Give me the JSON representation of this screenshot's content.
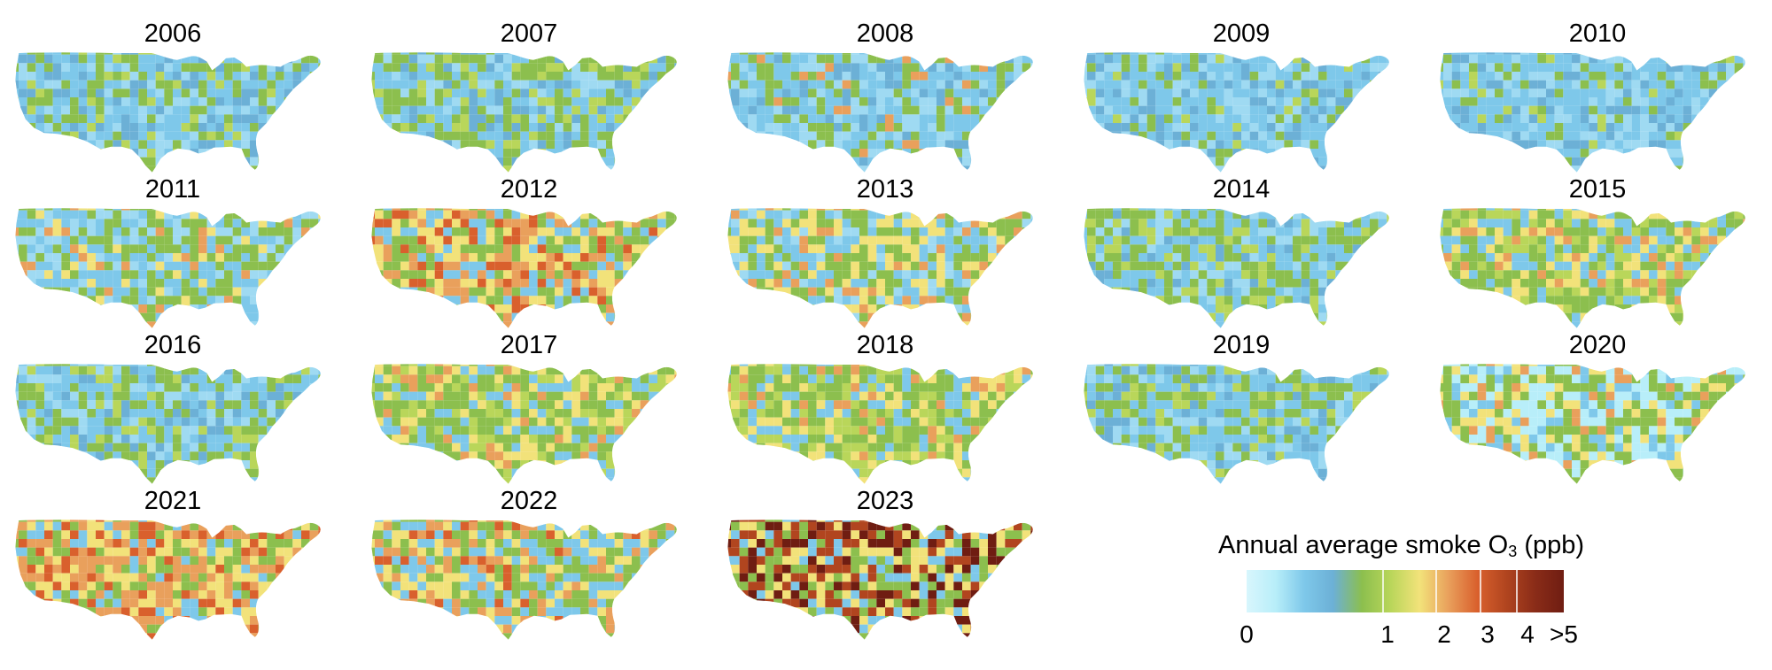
{
  "maps": {
    "panels": [
      {
        "year": "2006",
        "palette": [
          "#7ec8ea",
          "#9fdaf2",
          "#6cb0d6",
          "#8cbf4e",
          "#b9d65a"
        ],
        "weights": [
          0.34,
          0.16,
          0.18,
          0.22,
          0.1
        ]
      },
      {
        "year": "2007",
        "palette": [
          "#7ec8ea",
          "#9fdaf2",
          "#6cb0d6",
          "#8cbf4e",
          "#b9d65a"
        ],
        "weights": [
          0.28,
          0.14,
          0.14,
          0.3,
          0.14
        ]
      },
      {
        "year": "2008",
        "palette": [
          "#7ec8ea",
          "#9fdaf2",
          "#6cb0d6",
          "#8cbf4e",
          "#e9a05c"
        ],
        "weights": [
          0.34,
          0.18,
          0.16,
          0.24,
          0.08
        ]
      },
      {
        "year": "2009",
        "palette": [
          "#7ec8ea",
          "#9fdaf2",
          "#6cb0d6",
          "#8cbf4e",
          "#b9d65a"
        ],
        "weights": [
          0.4,
          0.2,
          0.18,
          0.16,
          0.06
        ]
      },
      {
        "year": "2010",
        "palette": [
          "#7ec8ea",
          "#9fdaf2",
          "#6cb0d6",
          "#8cbf4e",
          "#b9d65a"
        ],
        "weights": [
          0.42,
          0.22,
          0.18,
          0.12,
          0.06
        ]
      },
      {
        "year": "2011",
        "palette": [
          "#7ec8ea",
          "#9fdaf2",
          "#8cbf4e",
          "#f2e27a",
          "#e9a05c"
        ],
        "weights": [
          0.3,
          0.16,
          0.32,
          0.12,
          0.1
        ]
      },
      {
        "year": "2012",
        "palette": [
          "#7ec8ea",
          "#8cbf4e",
          "#f2e27a",
          "#e9a05c",
          "#d9602d"
        ],
        "weights": [
          0.2,
          0.28,
          0.22,
          0.18,
          0.12
        ]
      },
      {
        "year": "2013",
        "palette": [
          "#7ec8ea",
          "#9fdaf2",
          "#8cbf4e",
          "#f2e27a",
          "#e9a05c"
        ],
        "weights": [
          0.26,
          0.12,
          0.32,
          0.2,
          0.1
        ]
      },
      {
        "year": "2014",
        "palette": [
          "#7ec8ea",
          "#9fdaf2",
          "#6cb0d6",
          "#8cbf4e",
          "#b9d65a"
        ],
        "weights": [
          0.3,
          0.14,
          0.12,
          0.32,
          0.12
        ]
      },
      {
        "year": "2015",
        "palette": [
          "#7ec8ea",
          "#8cbf4e",
          "#b9d65a",
          "#f2e27a",
          "#e9a05c"
        ],
        "weights": [
          0.26,
          0.3,
          0.18,
          0.18,
          0.08
        ]
      },
      {
        "year": "2016",
        "palette": [
          "#7ec8ea",
          "#9fdaf2",
          "#6cb0d6",
          "#8cbf4e",
          "#b9d65a"
        ],
        "weights": [
          0.34,
          0.16,
          0.16,
          0.24,
          0.1
        ]
      },
      {
        "year": "2017",
        "palette": [
          "#7ec8ea",
          "#8cbf4e",
          "#b9d65a",
          "#f2e27a",
          "#e9a05c"
        ],
        "weights": [
          0.24,
          0.32,
          0.18,
          0.18,
          0.08
        ]
      },
      {
        "year": "2018",
        "palette": [
          "#7ec8ea",
          "#8cbf4e",
          "#b9d65a",
          "#f2e27a",
          "#e9a05c"
        ],
        "weights": [
          0.22,
          0.34,
          0.18,
          0.16,
          0.1
        ]
      },
      {
        "year": "2019",
        "palette": [
          "#7ec8ea",
          "#9fdaf2",
          "#6cb0d6",
          "#8cbf4e",
          "#b9d65a"
        ],
        "weights": [
          0.34,
          0.18,
          0.14,
          0.24,
          0.1
        ]
      },
      {
        "year": "2020",
        "palette": [
          "#b8eef9",
          "#7ec8ea",
          "#8cbf4e",
          "#f2e27a",
          "#e9a05c"
        ],
        "weights": [
          0.28,
          0.12,
          0.34,
          0.16,
          0.1
        ]
      },
      {
        "year": "2021",
        "palette": [
          "#7ec8ea",
          "#8cbf4e",
          "#f2e27a",
          "#e9a05c",
          "#d9602d"
        ],
        "weights": [
          0.12,
          0.2,
          0.24,
          0.3,
          0.14
        ]
      },
      {
        "year": "2022",
        "palette": [
          "#7ec8ea",
          "#8cbf4e",
          "#f2e27a",
          "#e9a05c",
          "#d9602d"
        ],
        "weights": [
          0.24,
          0.3,
          0.22,
          0.16,
          0.08
        ]
      },
      {
        "year": "2023",
        "palette": [
          "#7ec8ea",
          "#8cbf4e",
          "#f2e27a",
          "#b1451f",
          "#6f1d12"
        ],
        "weights": [
          0.16,
          0.2,
          0.2,
          0.24,
          0.2
        ]
      }
    ]
  },
  "legend": {
    "title": "Annual average smoke O",
    "title_subscript": "3",
    "title_unit": " (ppb)",
    "ticks": [
      "0",
      "1",
      "2",
      "3",
      "4",
      ">5"
    ],
    "colors": [
      "#d8f6fd",
      "#b8eef9",
      "#7ec8ea",
      "#6cb0d6",
      "#8cbf4e",
      "#b9d65a",
      "#f2e27a",
      "#e9a05c",
      "#d9602d",
      "#b1451f",
      "#8a2c18",
      "#6f1d12"
    ]
  }
}
